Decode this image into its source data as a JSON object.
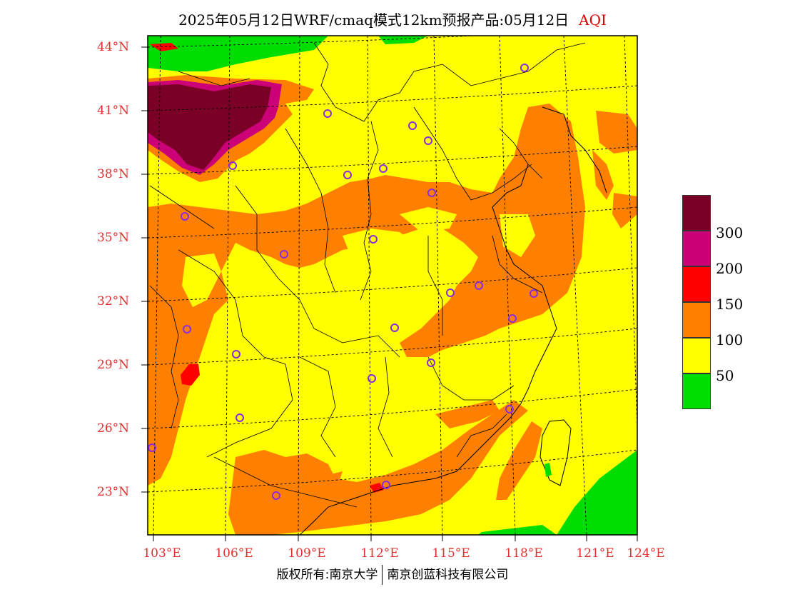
{
  "title": {
    "main": "2025年05月12日WRF/cmaq模式12km预报产品:05月12日",
    "aqi_label": "AQI"
  },
  "axes": {
    "lat_labels": [
      "44°N",
      "41°N",
      "38°N",
      "35°N",
      "32°N",
      "29°N",
      "26°N",
      "23°N"
    ],
    "lon_labels": [
      "103°E",
      "106°E",
      "109°E",
      "112°E",
      "115°E",
      "118°E",
      "121°E",
      "124°E"
    ]
  },
  "legend": {
    "colors": [
      "#7a0026",
      "#cc0077",
      "#ff0000",
      "#ff8000",
      "#ffff00",
      "#00dd00"
    ],
    "labels": [
      "300",
      "200",
      "150",
      "100",
      "50"
    ]
  },
  "credit": {
    "left": "版权所有:南京大学",
    "right": "南京创蓝科技有限公司"
  }
}
